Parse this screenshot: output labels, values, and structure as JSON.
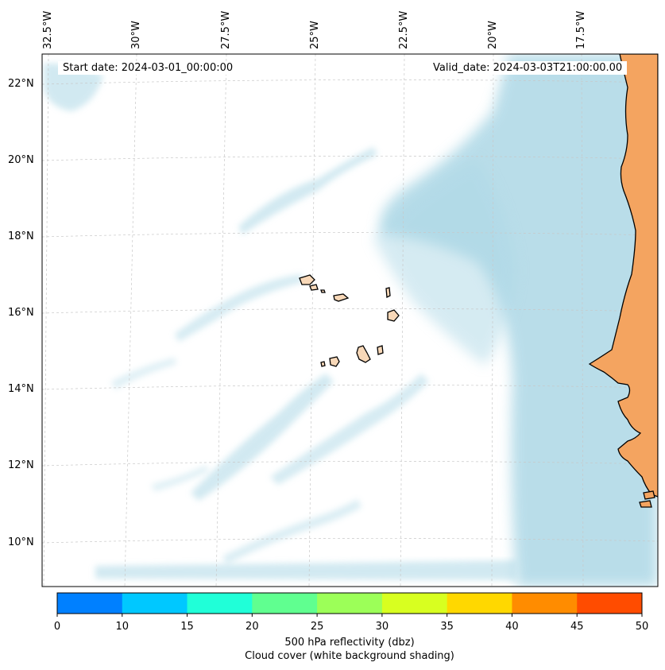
{
  "map": {
    "longitude_labels": [
      "32.5°W",
      "30°W",
      "27.5°W",
      "25°W",
      "22.5°W",
      "20°W",
      "17.5°W"
    ],
    "latitude_labels": [
      "22°N",
      "20°N",
      "18°N",
      "16°N",
      "14°N",
      "12°N",
      "10°N"
    ],
    "start_date": "Start date: 2024-03-01_00:00:00",
    "valid_date": "Valid_date: 2024-03-03T21:00:00.00",
    "colors": {
      "land": "#f4a460",
      "cloud": "#add8e6",
      "coastline": "#000000",
      "gridline": "#c8c8c8"
    }
  },
  "colorbar": {
    "ticks": [
      "0",
      "10",
      "15",
      "20",
      "25",
      "30",
      "35",
      "40",
      "45",
      "50"
    ],
    "colors": [
      "#0080ff",
      "#00c8ff",
      "#20ffd8",
      "#60ff90",
      "#9cff58",
      "#d8ff20",
      "#ffd800",
      "#ff8c00",
      "#ff4c00"
    ],
    "label_line1": "500 hPa reflectivity (dbz)",
    "label_line2": "Cloud cover (white background shading)"
  }
}
